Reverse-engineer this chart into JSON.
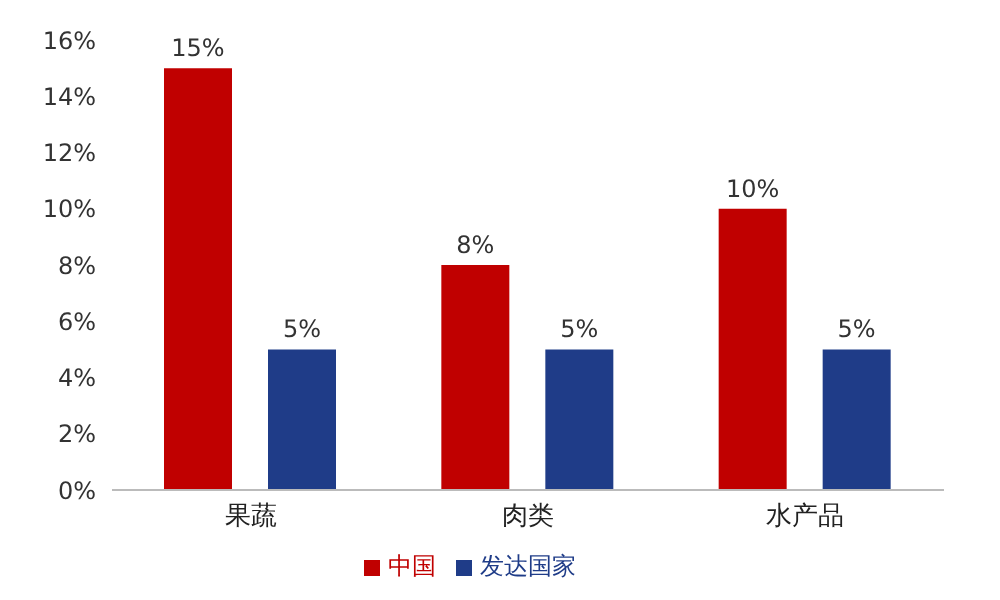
{
  "chart_data": {
    "type": "bar",
    "categories": [
      "果蔬",
      "肉类",
      "水产品"
    ],
    "series": [
      {
        "name": "中国",
        "color": "#c00000",
        "values": [
          15,
          8,
          10
        ],
        "value_labels": [
          "15%",
          "8%",
          "10%"
        ]
      },
      {
        "name": "发达国家",
        "color": "#1f3c88",
        "values": [
          5,
          5,
          5
        ],
        "value_labels": [
          "5%",
          "5%",
          "5%"
        ]
      }
    ],
    "ylim": [
      0,
      16
    ],
    "yticks": [
      {
        "value": 0,
        "label": "0%"
      },
      {
        "value": 2,
        "label": "2%"
      },
      {
        "value": 4,
        "label": "4%"
      },
      {
        "value": 6,
        "label": "6%"
      },
      {
        "value": 8,
        "label": "8%"
      },
      {
        "value": 10,
        "label": "10%"
      },
      {
        "value": 12,
        "label": "12%"
      },
      {
        "value": 14,
        "label": "14%"
      },
      {
        "value": 16,
        "label": "16%"
      }
    ],
    "grid": false,
    "legend": "bottom"
  }
}
